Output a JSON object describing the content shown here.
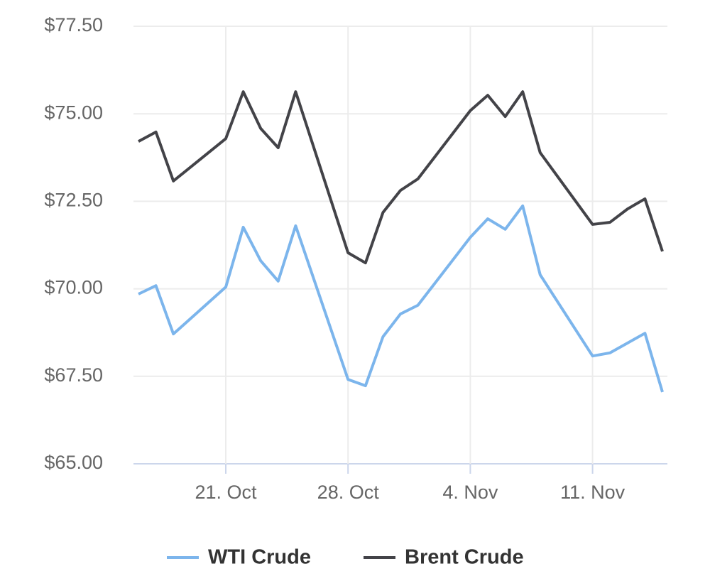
{
  "chart_data": {
    "type": "line",
    "x": [
      "Oct 16",
      "Oct 17",
      "Oct 18",
      "Oct 21",
      "Oct 22",
      "Oct 23",
      "Oct 24",
      "Oct 25",
      "Oct 28",
      "Oct 29",
      "Oct 30",
      "Oct 31",
      "Nov 1",
      "Nov 4",
      "Nov 5",
      "Nov 6",
      "Nov 7",
      "Nov 8",
      "Nov 11",
      "Nov 12",
      "Nov 13",
      "Nov 14",
      "Nov 15"
    ],
    "series": [
      {
        "name": "WTI Crude",
        "color": "#7cb5ec",
        "values": [
          69.85,
          70.09,
          68.71,
          70.05,
          71.76,
          70.8,
          70.22,
          71.8,
          67.41,
          67.23,
          68.63,
          69.28,
          69.53,
          71.47,
          72.0,
          71.7,
          72.37,
          70.4,
          68.08,
          68.17,
          68.45,
          68.73,
          67.05
        ]
      },
      {
        "name": "Brent Crude",
        "color": "#434348",
        "values": [
          74.21,
          74.48,
          73.08,
          74.29,
          75.63,
          74.58,
          74.03,
          75.63,
          71.03,
          70.74,
          72.18,
          72.81,
          73.14,
          75.09,
          75.53,
          74.92,
          75.63,
          73.89,
          71.84,
          71.9,
          72.28,
          72.57,
          71.07
        ]
      }
    ],
    "ylim": [
      65,
      77.5
    ],
    "yticks": [
      {
        "value": 65,
        "label": "$65.00"
      },
      {
        "value": 67.5,
        "label": "$67.50"
      },
      {
        "value": 70,
        "label": "$70.00"
      },
      {
        "value": 72.5,
        "label": "$72.50"
      },
      {
        "value": 75,
        "label": "$75.00"
      },
      {
        "value": 77.5,
        "label": "$77.50"
      }
    ],
    "xticks": [
      {
        "value": "Oct 21",
        "label": "21. Oct"
      },
      {
        "value": "Oct 28",
        "label": "28. Oct"
      },
      {
        "value": "Nov 4",
        "label": "4. Nov"
      },
      {
        "value": "Nov 11",
        "label": "11. Nov"
      }
    ],
    "grid": true
  }
}
